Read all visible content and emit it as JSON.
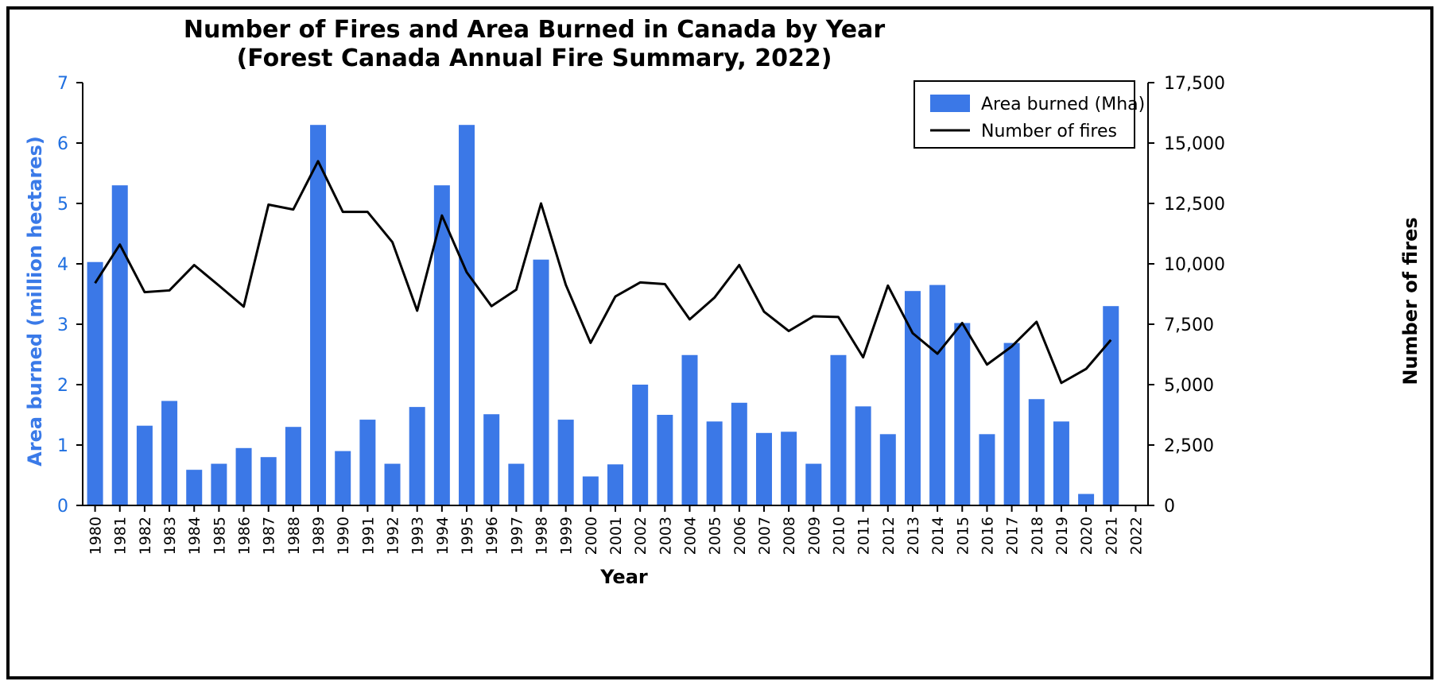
{
  "chart_data": {
    "type": "bar",
    "title": "Number of Fires and Area Burned in Canada by Year",
    "subtitle": "(Forest Canada Annual Fire Summary, 2022)",
    "xlabel": "Year",
    "ylabel_left": "Area burned (million hectares)",
    "ylabel_right": "Number of fires",
    "categories": [
      "1980",
      "1981",
      "1982",
      "1983",
      "1984",
      "1985",
      "1986",
      "1987",
      "1988",
      "1989",
      "1990",
      "1991",
      "1992",
      "1993",
      "1994",
      "1995",
      "1996",
      "1997",
      "1998",
      "1999",
      "2000",
      "2001",
      "2002",
      "2003",
      "2004",
      "2005",
      "2006",
      "2007",
      "2008",
      "2009",
      "2010",
      "2011",
      "2012",
      "2013",
      "2014",
      "2015",
      "2016",
      "2017",
      "2018",
      "2019",
      "2020",
      "2021",
      "2022"
    ],
    "ylim_left": [
      0,
      7
    ],
    "yticks_left": [
      "0",
      "1",
      "2",
      "3",
      "4",
      "5",
      "6",
      "7"
    ],
    "ylim_right": [
      0,
      17500
    ],
    "yticks_right": [
      "0",
      "2,500",
      "5,000",
      "7,500",
      "10,000",
      "12,500",
      "15,000",
      "17,500"
    ],
    "legend_position": "top-right",
    "series": [
      {
        "name": "Area burned (Mha)",
        "type": "bar",
        "axis": "left",
        "color": "#3b78e7",
        "values": [
          4.03,
          5.3,
          1.32,
          1.73,
          0.59,
          0.69,
          0.95,
          0.8,
          1.3,
          6.3,
          0.9,
          1.42,
          0.69,
          1.63,
          5.3,
          6.3,
          1.51,
          0.69,
          4.07,
          1.42,
          0.48,
          0.68,
          2.0,
          1.5,
          2.49,
          1.39,
          1.7,
          1.2,
          1.22,
          0.69,
          2.49,
          1.64,
          1.18,
          3.55,
          3.65,
          3.02,
          1.18,
          2.69,
          1.76,
          1.39,
          0.19,
          3.3,
          null
        ]
      },
      {
        "name": "Number of fires",
        "type": "line",
        "axis": "right",
        "color": "#000000",
        "values": [
          9200,
          10800,
          8830,
          8900,
          9950,
          9100,
          8230,
          12450,
          12250,
          14250,
          12150,
          12150,
          10900,
          8060,
          12000,
          9650,
          8250,
          8930,
          12500,
          9130,
          6730,
          8650,
          9230,
          9160,
          7700,
          8600,
          9950,
          8020,
          7220,
          7830,
          7800,
          6130,
          9100,
          7130,
          6280,
          7550,
          5830,
          6580,
          7600,
          5070,
          5650,
          6850,
          null
        ]
      }
    ]
  }
}
